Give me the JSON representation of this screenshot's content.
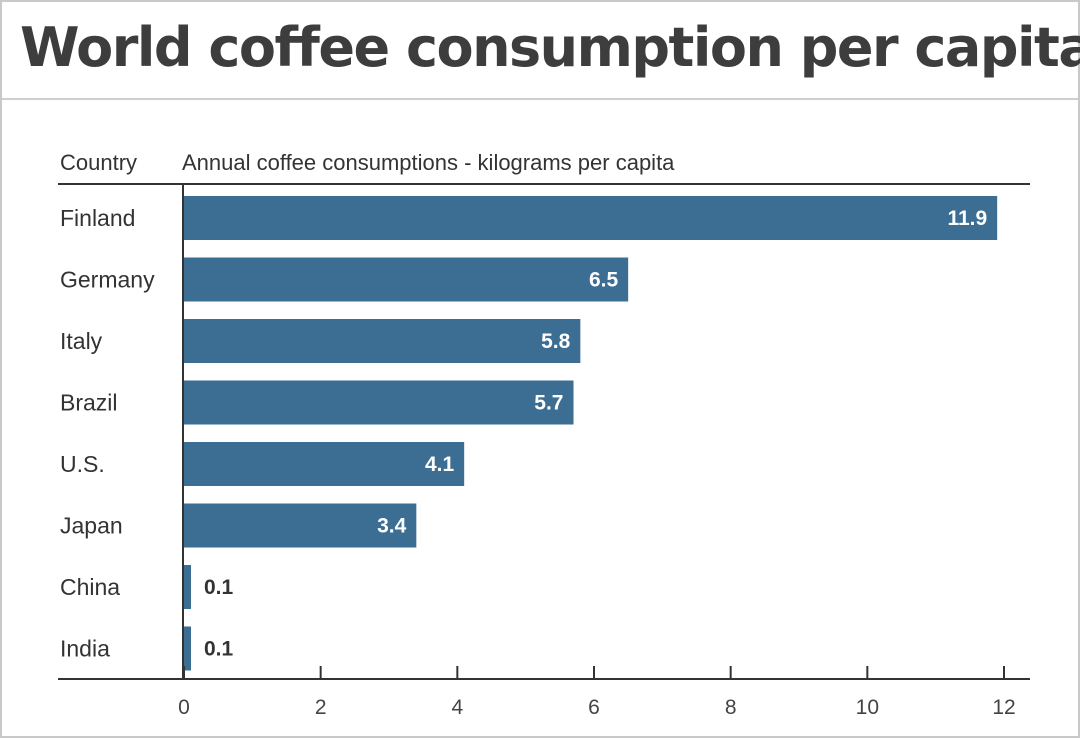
{
  "title": "World coffee consumption per capita",
  "chart_data": {
    "type": "bar",
    "orientation": "horizontal",
    "category_header": "Country",
    "value_header": "Annual coffee consumptions - kilograms per capita",
    "categories": [
      "Finland",
      "Germany",
      "Italy",
      "Brazil",
      "U.S.",
      "Japan",
      "China",
      "India"
    ],
    "values": [
      11.9,
      6.5,
      5.8,
      5.7,
      4.1,
      3.4,
      0.1,
      0.1
    ],
    "value_labels": [
      "11.9",
      "6.5",
      "5.8",
      "5.7",
      "4.1",
      "3.4",
      "0.1",
      "0.1"
    ],
    "xlim": [
      0,
      12
    ],
    "x_ticks": [
      0,
      2,
      4,
      6,
      8,
      10,
      12
    ],
    "grid": false,
    "legend": "none",
    "bar_color": "#3b6e92"
  }
}
